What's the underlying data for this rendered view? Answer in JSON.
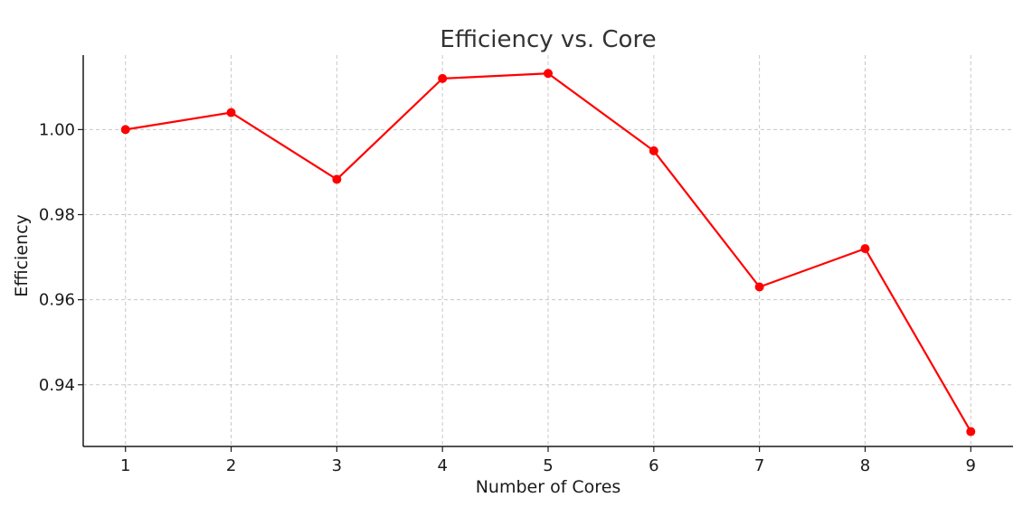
{
  "chart_data": {
    "type": "line",
    "title": "Efficiency vs. Core",
    "xlabel": "Number of Cores",
    "ylabel": "Efficiency",
    "x": [
      1,
      2,
      3,
      4,
      5,
      6,
      7,
      8,
      9
    ],
    "series": [
      {
        "values": [
          1.0,
          1.004,
          0.9883,
          1.012,
          1.0132,
          0.995,
          0.963,
          0.972,
          0.929
        ]
      }
    ],
    "xticks": [
      "1",
      "2",
      "3",
      "4",
      "5",
      "6",
      "7",
      "8",
      "9"
    ],
    "yticks": [
      0.94,
      0.96,
      0.98,
      1.0
    ],
    "ytick_labels": [
      "0.94",
      "0.96",
      "0.98",
      "1.00"
    ],
    "xlim": [
      0.6,
      9.4
    ],
    "ylim": [
      0.9255,
      1.0175
    ],
    "grid": true,
    "color": "#ff0000"
  }
}
